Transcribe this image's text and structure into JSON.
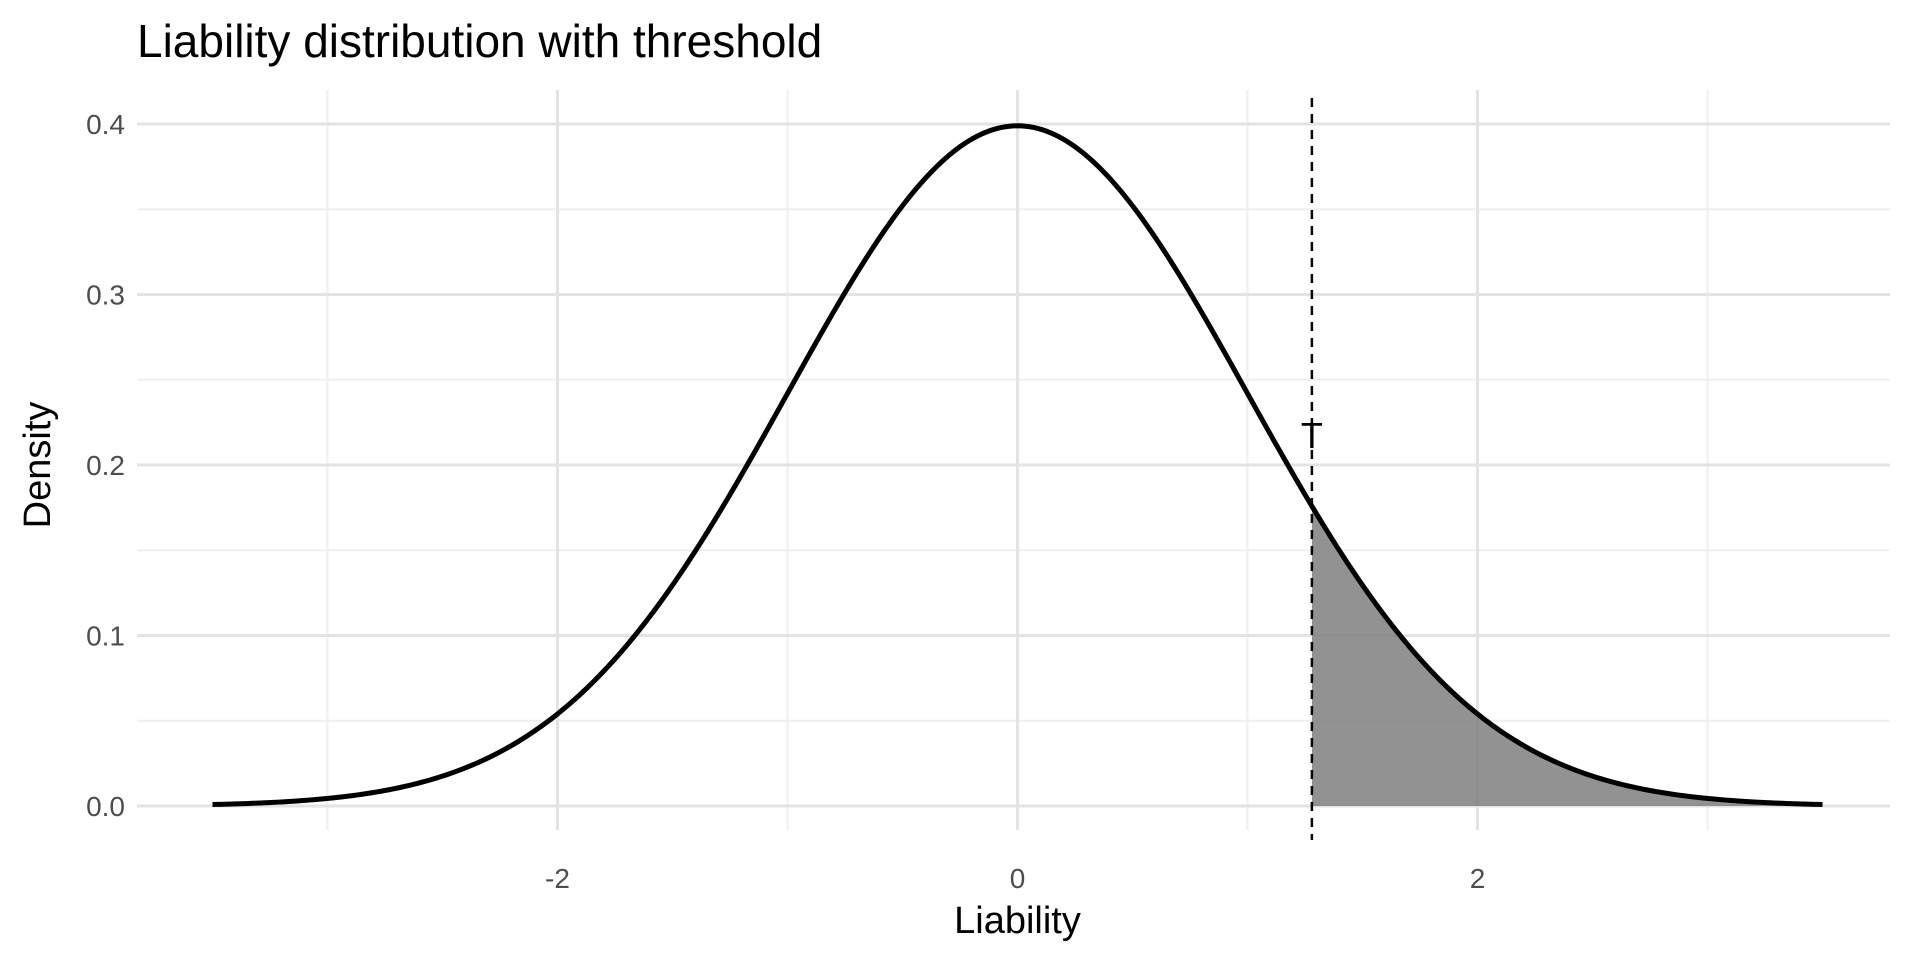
{
  "chart_data": {
    "type": "area",
    "title": "Liability distribution with threshold",
    "xlabel": "Liability",
    "ylabel": "Density",
    "xlim": [
      -3.5,
      3.5
    ],
    "ylim": [
      0,
      0.4
    ],
    "x_ticks": [
      -2,
      0,
      2
    ],
    "x_tick_labels": [
      "-2",
      "0",
      "2"
    ],
    "y_ticks": [
      0,
      0.1,
      0.2,
      0.3,
      0.4
    ],
    "y_tick_labels": [
      "0.0",
      "0.1",
      "0.2",
      "0.3",
      "0.4"
    ],
    "grid": true,
    "legend": "none",
    "series": [
      {
        "distribution": "standard normal density",
        "x": [
          -3.5,
          -3.25,
          -3.0,
          -2.75,
          -2.5,
          -2.25,
          -2.0,
          -1.75,
          -1.5,
          -1.25,
          -1.0,
          -0.75,
          -0.5,
          -0.25,
          0.0,
          0.25,
          0.5,
          0.75,
          1.0,
          1.25,
          1.5,
          1.75,
          2.0,
          2.25,
          2.5,
          2.75,
          3.0,
          3.25,
          3.5
        ],
        "y": [
          0.0009,
          0.002,
          0.0044,
          0.0091,
          0.0175,
          0.0317,
          0.054,
          0.0863,
          0.1295,
          0.1826,
          0.242,
          0.3011,
          0.3521,
          0.3867,
          0.3989,
          0.3867,
          0.3521,
          0.3011,
          0.242,
          0.1826,
          0.1295,
          0.0863,
          0.054,
          0.0317,
          0.0175,
          0.0091,
          0.0044,
          0.002,
          0.0009
        ],
        "color": "#000000"
      }
    ],
    "threshold": {
      "label": "T",
      "x": 1.28,
      "line_style": "dashed",
      "line_color": "#000000"
    },
    "shaded_region": {
      "from_x": 1.28,
      "to_x": 3.5,
      "fill_color": "#7f7f7f",
      "opacity": 0.85
    },
    "colors": {
      "grid_major": "#e3e3e3",
      "grid_minor": "#efefef",
      "tick_label": "#4d4d4d",
      "axis_title": "#000000"
    }
  }
}
